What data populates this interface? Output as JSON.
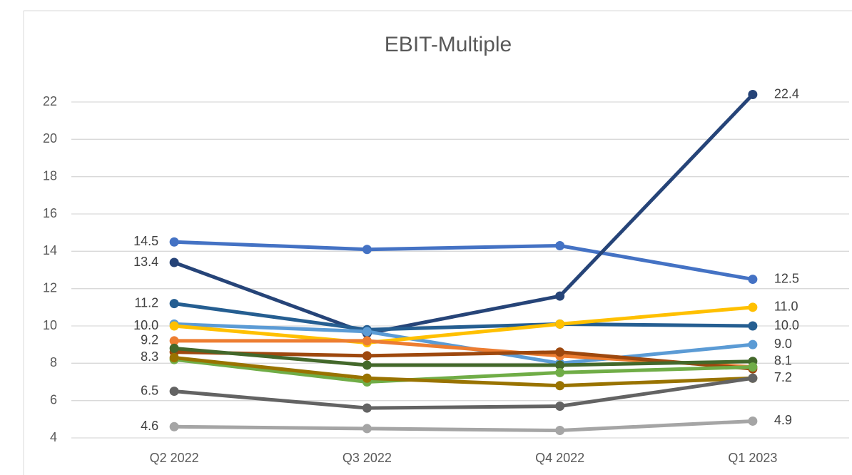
{
  "chart_data": {
    "type": "line",
    "title": "EBIT-Multiple",
    "categories": [
      "Q2 2022",
      "Q3 2022",
      "Q4 2022",
      "Q1 2023"
    ],
    "ylim": [
      4,
      22
    ],
    "yticks": [
      4,
      6,
      8,
      10,
      12,
      14,
      16,
      18,
      20,
      22
    ],
    "grid": true,
    "series": [
      {
        "color": "#4472c4",
        "values": [
          14.5,
          14.1,
          14.3,
          12.5
        ],
        "value_labels": [
          "14.5",
          null,
          null,
          "12.5"
        ]
      },
      {
        "color": "#264478",
        "values": [
          13.4,
          9.6,
          11.6,
          22.4
        ],
        "value_labels": [
          "13.4",
          null,
          null,
          "22.4"
        ]
      },
      {
        "color": "#255e91",
        "values": [
          11.2,
          9.8,
          10.1,
          10.0
        ],
        "value_labels": [
          "11.2",
          null,
          null,
          "10.0"
        ]
      },
      {
        "color": "#5b9bd5",
        "values": [
          10.1,
          9.7,
          8.0,
          9.0
        ],
        "value_labels": [
          null,
          null,
          null,
          "9.0"
        ]
      },
      {
        "color": "#ffc000",
        "values": [
          10.0,
          9.1,
          10.1,
          11.0
        ],
        "value_labels": [
          "10.0",
          null,
          null,
          "11.0"
        ]
      },
      {
        "color": "#ed7d31",
        "values": [
          9.2,
          9.2,
          8.4,
          7.8
        ],
        "value_labels": [
          "9.2",
          null,
          null,
          null
        ]
      },
      {
        "color": "#9e480e",
        "values": [
          8.6,
          8.4,
          8.6,
          7.7
        ],
        "value_labels": [
          null,
          null,
          null,
          null
        ]
      },
      {
        "color": "#43682b",
        "values": [
          8.8,
          7.9,
          7.9,
          8.1
        ],
        "value_labels": [
          null,
          null,
          null,
          "8.1"
        ]
      },
      {
        "color": "#70ad47",
        "values": [
          8.2,
          7.0,
          7.5,
          7.8
        ],
        "value_labels": [
          null,
          null,
          null,
          null
        ]
      },
      {
        "color": "#997300",
        "values": [
          8.3,
          7.2,
          6.8,
          7.2
        ],
        "value_labels": [
          "8.3",
          null,
          null,
          "7.2"
        ]
      },
      {
        "color": "#636363",
        "values": [
          6.5,
          5.6,
          5.7,
          7.2
        ],
        "value_labels": [
          "6.5",
          null,
          null,
          null
        ]
      },
      {
        "color": "#a5a5a5",
        "values": [
          4.6,
          4.5,
          4.4,
          4.9
        ],
        "value_labels": [
          "4.6",
          null,
          null,
          "4.9"
        ]
      }
    ]
  }
}
